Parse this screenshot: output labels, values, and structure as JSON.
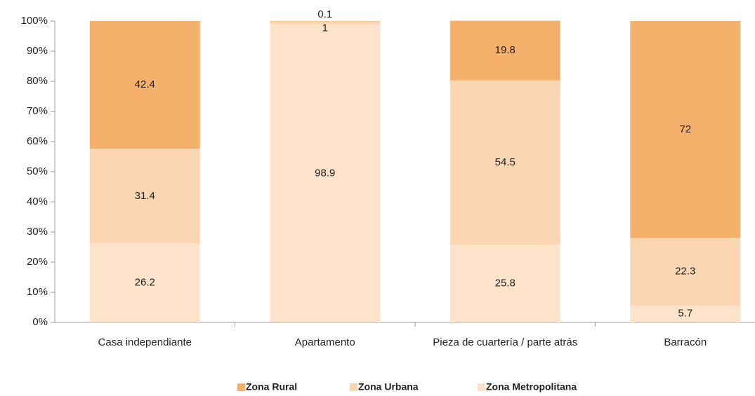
{
  "chart_data": {
    "type": "stacked_bar",
    "categories": [
      "Casa independiante",
      "Apartamento",
      "Pieza de cuartería / parte atrás",
      "Barracón"
    ],
    "series": [
      {
        "name": "Zona Metropolitana",
        "color": "#fde3ca",
        "values": [
          26.2,
          98.9,
          25.8,
          5.7
        ]
      },
      {
        "name": "Zona Urbana",
        "color": "#fad6b3",
        "values": [
          31.4,
          1.0,
          54.5,
          22.3
        ]
      },
      {
        "name": "Zona Rural",
        "color": "#f5b06c",
        "values": [
          42.4,
          0.1,
          19.8,
          72.0
        ]
      }
    ],
    "legend_order": [
      "Zona Rural",
      "Zona Urbana",
      "Zona Metropolitana"
    ],
    "ylim": [
      0,
      100
    ],
    "yticks": [
      {
        "value": 0,
        "label": "0%"
      },
      {
        "value": 10,
        "label": "10%"
      },
      {
        "value": 20,
        "label": "20%"
      },
      {
        "value": 30,
        "label": "30%"
      },
      {
        "value": 40,
        "label": "40%"
      },
      {
        "value": 50,
        "label": "50%"
      },
      {
        "value": 60,
        "label": "60%"
      },
      {
        "value": 70,
        "label": "70%"
      },
      {
        "value": 80,
        "label": "80%"
      },
      {
        "value": 90,
        "label": "90%"
      },
      {
        "value": 100,
        "label": "100%"
      }
    ],
    "legend": "bottom"
  }
}
